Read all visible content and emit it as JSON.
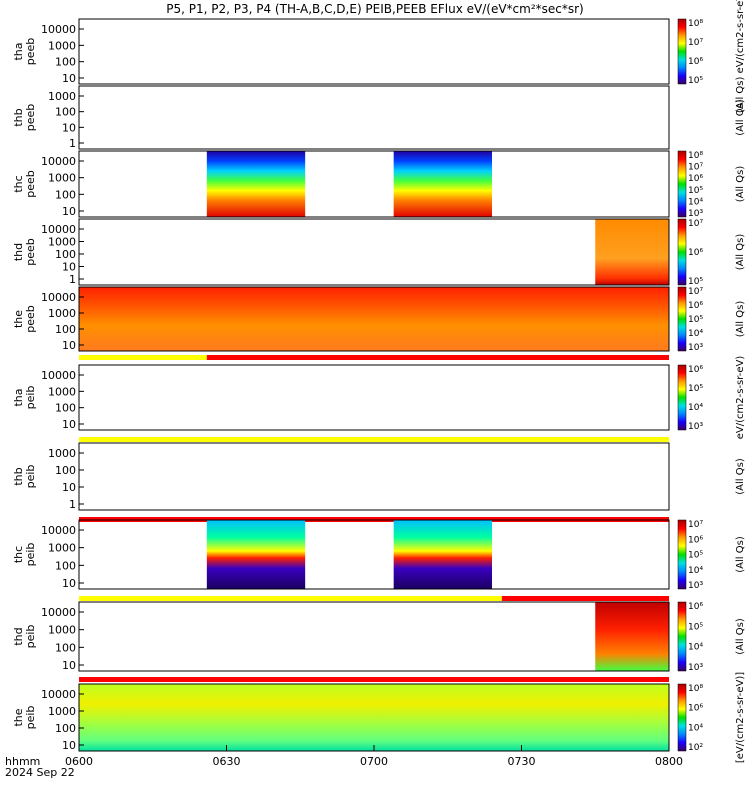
{
  "title": "P5, P1, P2, P3, P4 (TH-A,B,C,D,E) PEIB,PEEB EFlux eV/(eV*cm²*sec*sr)",
  "chart_data": {
    "type": "heatmap",
    "date": "2024 Sep 22",
    "x_axis_label": "hhmm",
    "x_range": [
      "0600",
      "0800"
    ],
    "x_ticks": [
      "0600",
      "0630",
      "0700",
      "0730",
      "0800"
    ],
    "y_scale": "log",
    "panels": [
      {
        "name": "tha peeb",
        "y_ticks": [
          "10",
          "100",
          "1000",
          "10000"
        ],
        "cbar_ticks": [
          "10⁵",
          "10⁶",
          "10⁷",
          "10⁸"
        ],
        "cbar_label": "(All Qs) eV/(cm2-s-sr-eV)",
        "data": "none",
        "flag_bar": null
      },
      {
        "name": "thb peeb",
        "y_ticks": [
          "1",
          "10",
          "100",
          "1000"
        ],
        "cbar_ticks": [],
        "cbar_label": "(All Qs)",
        "data": "none",
        "flag_bar": null
      },
      {
        "name": "thc peeb",
        "y_ticks": [
          "10",
          "100",
          "1000",
          "10000"
        ],
        "cbar_ticks": [
          "10³",
          "10⁴",
          "10⁵",
          "10⁶",
          "10⁷",
          "10⁸"
        ],
        "cbar_label": "(All Qs)",
        "data": [
          [
            "0626",
            "0646"
          ],
          [
            "0704",
            "0724"
          ]
        ],
        "flag_bar": null
      },
      {
        "name": "thd peeb",
        "y_ticks": [
          "1",
          "10",
          "100",
          "1000",
          "10000"
        ],
        "cbar_ticks": [
          "10⁵",
          "10⁶",
          "10⁷"
        ],
        "cbar_label": "(All Qs)",
        "data": [
          [
            "0745",
            "0800"
          ]
        ],
        "flag_bar": null
      },
      {
        "name": "the peeb",
        "y_ticks": [
          "10",
          "100",
          "1000",
          "10000"
        ],
        "cbar_ticks": [
          "10³",
          "10⁴",
          "10⁵",
          "10⁶",
          "10⁷"
        ],
        "cbar_label": "(All Qs)",
        "data": [
          [
            "0600",
            "0800"
          ]
        ],
        "flag_bar": [
          {
            "from": "0600",
            "to": "0626",
            "color": "#ffff00"
          },
          {
            "from": "0626",
            "to": "0800",
            "color": "#ff0000"
          }
        ]
      },
      {
        "name": "tha peib",
        "y_ticks": [
          "10",
          "100",
          "1000",
          "10000"
        ],
        "cbar_ticks": [
          "10³",
          "10⁴",
          "10⁵",
          "10⁶"
        ],
        "cbar_label": "eV/(cm2-s-sr-eV)",
        "data": "none",
        "flag_bar": [
          {
            "from": "0600",
            "to": "0800",
            "color": "#ffff00"
          }
        ]
      },
      {
        "name": "thb peib",
        "y_ticks": [
          "1",
          "10",
          "100",
          "1000"
        ],
        "cbar_ticks": [],
        "cbar_label": "(All Qs)",
        "data": "none",
        "flag_bar": [
          {
            "from": "0600",
            "to": "0800",
            "color": "#ff0000"
          }
        ]
      },
      {
        "name": "thc peib",
        "y_ticks": [
          "10",
          "100",
          "1000",
          "10000"
        ],
        "cbar_ticks": [
          "10³",
          "10⁴",
          "10⁵",
          "10⁶",
          "10⁷"
        ],
        "cbar_label": "(All Qs)",
        "data": [
          [
            "0626",
            "0646"
          ],
          [
            "0704",
            "0724"
          ]
        ],
        "flag_bar": [
          {
            "from": "0600",
            "to": "0726",
            "color": "#ffff00"
          },
          {
            "from": "0726",
            "to": "0800",
            "color": "#ff0000"
          }
        ]
      },
      {
        "name": "thd peib",
        "y_ticks": [
          "10",
          "100",
          "1000",
          "10000"
        ],
        "cbar_ticks": [
          "10³",
          "10⁴",
          "10⁵",
          "10⁶"
        ],
        "cbar_label": "(All Qs)",
        "data": [
          [
            "0745",
            "0800"
          ]
        ],
        "flag_bar": [
          {
            "from": "0600",
            "to": "0800",
            "color": "#ff0000"
          }
        ]
      },
      {
        "name": "the peib",
        "y_ticks": [
          "10",
          "100",
          "1000",
          "10000"
        ],
        "cbar_ticks": [
          "10²",
          "10⁴",
          "10⁶",
          "10⁸"
        ],
        "cbar_label": "[eV/(cm2-s-sr-eV)]",
        "data": [
          [
            "0600",
            "0800"
          ]
        ],
        "flag_bar": null
      }
    ]
  },
  "colors": {
    "colormap": [
      "#3a0060",
      "#1a00ff",
      "#0088ff",
      "#00e0e0",
      "#00e000",
      "#ffff00",
      "#ff9900",
      "#ff0000",
      "#aa0000"
    ],
    "flag_yellow": "#ffff00",
    "flag_red": "#ff0000"
  }
}
